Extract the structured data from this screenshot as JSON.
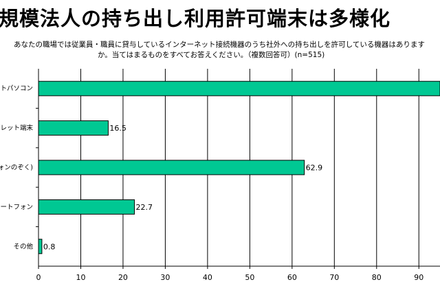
{
  "title": "規模法人の持ち出し利用許可端末は多様化",
  "question": {
    "line1": "あなたの職場では従業員・職員に貸与しているインターネット接続機器のうち社外への持ち出しを許可している機器はあります",
    "line2": "か。当てはまるものをすべてお答えください。（複数回答可）(n=515)"
  },
  "chart_data": {
    "type": "bar",
    "orientation": "horizontal",
    "categories": [
      "ートパソコン",
      "ブレット端末",
      "フォンのぞく)",
      "マートフォン",
      "その他"
    ],
    "values": [
      95,
      16.5,
      62.9,
      22.7,
      0.8
    ],
    "value_labels": [
      "",
      "16.5",
      "62.9",
      "22.7",
      "0.8"
    ],
    "xlim": [
      0,
      95
    ],
    "xticks": [
      0,
      10,
      20,
      30,
      40,
      50,
      60,
      70,
      80,
      90
    ],
    "xtick_labels": [
      "0",
      "10",
      "20",
      "30",
      "40",
      "50",
      "60",
      "70",
      "80",
      "90"
    ],
    "grid": true,
    "bar_color": "#00c893",
    "grid_color": "#000000"
  }
}
